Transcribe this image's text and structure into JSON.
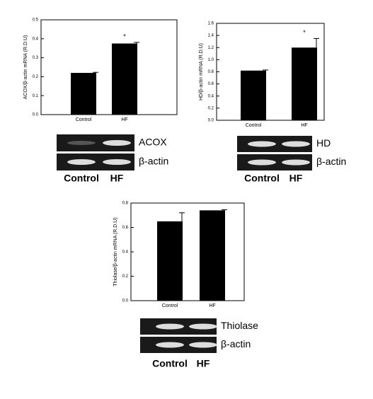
{
  "chart_data": [
    {
      "type": "bar",
      "y_label": "ACOX/β-actin mRNA (R.D.U)",
      "categories": [
        "Control",
        "HF"
      ],
      "values": [
        0.22,
        0.375
      ],
      "errors": [
        0.003,
        0.006
      ],
      "color": "#000000",
      "ylim": [
        0,
        0.5
      ],
      "yticks": [
        {
          "value": 0,
          "label": "0.0"
        },
        0.1,
        0.2,
        0.3,
        0.4,
        0.5
      ],
      "annotations": [
        {
          "text": "*",
          "category": "HF"
        }
      ],
      "gel": {
        "bands": [
          "ACOX",
          "β-actin"
        ],
        "lanes": [
          "Control",
          "HF"
        ]
      }
    },
    {
      "type": "bar",
      "y_label": "HD/β-actin mRNA (R.D.U)",
      "categories": [
        "Control",
        "HF"
      ],
      "values": [
        0.82,
        1.2
      ],
      "errors": [
        0.01,
        0.15
      ],
      "color": "#000000",
      "ylim": [
        0,
        1.6
      ],
      "yticks": [
        {
          "value": 0,
          "label": "0.0"
        },
        0.2,
        0.4,
        0.6,
        0.8,
        {
          "value": 1,
          "label": "1.0"
        },
        1.2,
        1.4,
        1.6
      ],
      "annotations": [
        {
          "text": "*",
          "category": "HF"
        }
      ],
      "gel": {
        "bands": [
          "HD",
          "β-actin"
        ],
        "lanes": [
          "Control",
          "HF"
        ]
      }
    },
    {
      "type": "bar",
      "y_label": "Thiolase/β-actin mRNA (R.D.U)",
      "categories": [
        "Control",
        "HF"
      ],
      "values": [
        0.65,
        0.74
      ],
      "errors": [
        0.07,
        0.005
      ],
      "color": "#000000",
      "ylim": [
        0,
        0.8
      ],
      "yticks": [
        {
          "value": 0,
          "label": "0.0"
        },
        0.2,
        0.4,
        0.6,
        0.8
      ],
      "gel": {
        "bands": [
          "Thiolase",
          "β-actin"
        ],
        "lanes": [
          "Control",
          "HF"
        ]
      }
    }
  ]
}
